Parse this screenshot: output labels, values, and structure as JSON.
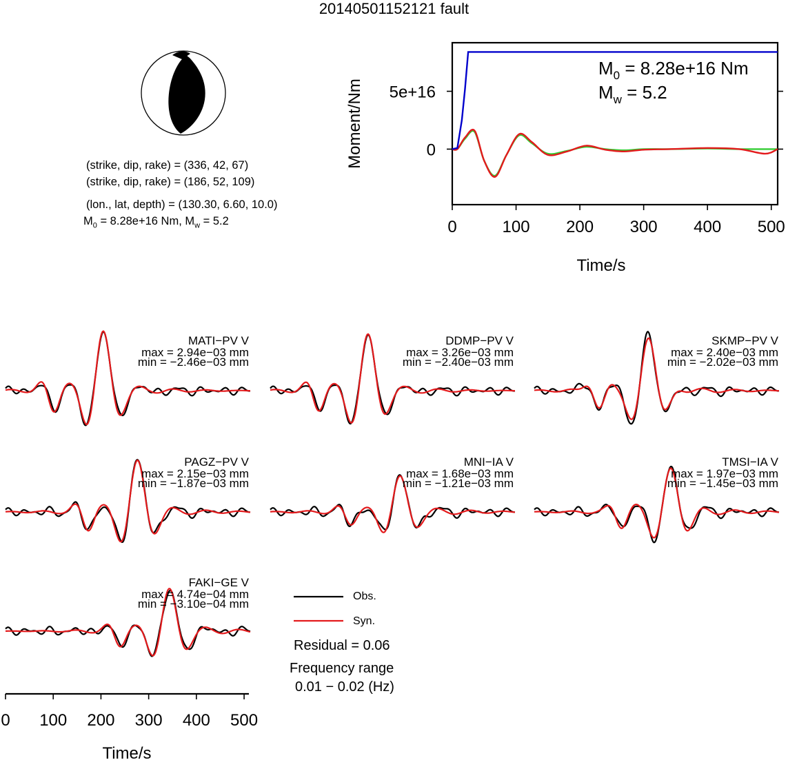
{
  "title": "20140501152121 fault",
  "mechanism": {
    "plane1": "(strike, dip, rake) = (336, 42, 67)",
    "plane2": "(strike, dip, rake) = (186, 52, 109)",
    "location": "(lon., lat, depth) = (130.30, 6.60, 10.0)",
    "m0_text": "M",
    "m0_sub": "0",
    "m0_value": " = 8.28e+16 Nm, M",
    "mw_sub": "w",
    "mw_value": " = 5.2"
  },
  "moment_chart": {
    "annotation_m0": "M",
    "annotation_m0_sub": "0",
    "annotation_m0_value": " = 8.28e+16 Nm",
    "annotation_mw": "M",
    "annotation_mw_sub": "w",
    "annotation_mw_value": " = 5.2"
  },
  "legend": {
    "obs_label": "Obs.",
    "syn_label": "Syn.",
    "obs_color": "#000000",
    "syn_color": "#e31a1c"
  },
  "residual": "Residual = 0.06",
  "frequency_label": "Frequency range",
  "frequency_range": "0.01 − 0.02 (Hz)",
  "chart_data": [
    {
      "type": "line",
      "xlabel": "Time/s",
      "ylabel": "Moment/Nm",
      "xlim": [
        0,
        510
      ],
      "ylim": [
        -4.8e+16,
        9.2e+16
      ],
      "xticks": [
        0,
        100,
        200,
        300,
        400,
        500
      ],
      "yticks": [
        0,
        5e+16
      ],
      "ytick_labels": [
        "0",
        "5e+16"
      ],
      "series": [
        {
          "color": "#0000cc",
          "x": [
            0,
            8,
            15,
            20,
            25,
            510
          ],
          "y": [
            0,
            1000000000000000.0,
            2.5e+16,
            5.2e+16,
            8.4e+16,
            8.4e+16
          ]
        },
        {
          "color": "#e31a1c",
          "x": [
            0,
            8,
            20,
            35,
            50,
            67,
            85,
            105,
            125,
            150,
            180,
            210,
            240,
            270,
            300,
            340,
            400,
            450,
            490,
            510
          ],
          "y": [
            0,
            0,
            1e+16,
            1.6e+16,
            -1e+16,
            -2.4e+16,
            -5000000000000000.0,
            1.3e+16,
            6000000000000000.0,
            -5000000000000000.0,
            -2000000000000000.0,
            3000000000000000.0,
            -500000000000000.0,
            -2000000000000000.0,
            -500000000000000.0,
            0,
            1000000000000000.0,
            0,
            -4000000000000000.0,
            0
          ]
        },
        {
          "color": "#33cc33",
          "x": [
            0,
            8,
            20,
            35,
            50,
            67,
            85,
            105,
            125,
            150,
            180,
            210,
            240,
            270,
            300,
            340,
            400,
            450,
            490,
            510
          ],
          "y": [
            0,
            0,
            9000000000000000.0,
            1.5e+16,
            -1e+16,
            -2.3e+16,
            -5000000000000000.0,
            1.2e+16,
            5000000000000000.0,
            -4000000000000000.0,
            -1500000000000000.0,
            2000000000000000.0,
            0,
            -1000000000000000.0,
            0,
            0,
            500000000000000.0,
            0,
            0,
            0
          ]
        }
      ]
    },
    {
      "type": "line",
      "xlabel": "Time/s",
      "xlim": [
        0,
        510
      ],
      "xticks": [
        0,
        100,
        200,
        300,
        400,
        500
      ],
      "stations": [
        {
          "name": "MATI−PV V",
          "max": "max = 2.94e−03 mm",
          "min": "min = −2.46e−03 mm"
        },
        {
          "name": "DDMP−PV V",
          "max": "max = 3.26e−03 mm",
          "min": "min = −2.40e−03 mm"
        },
        {
          "name": "SKMP−PV V",
          "max": "max = 2.40e−03 mm",
          "min": "min = −2.02e−03 mm"
        },
        {
          "name": "PAGZ−PV V",
          "max": "max = 2.15e−03 mm",
          "min": "min = −1.87e−03 mm"
        },
        {
          "name": "MNI−IA V",
          "max": "max = 1.68e−03 mm",
          "min": "min = −1.21e−03 mm"
        },
        {
          "name": "TMSI−IA V",
          "max": "max = 1.97e−03 mm",
          "min": "min = −1.45e−03 mm"
        },
        {
          "name": "FAKI−GE V",
          "max": "max = 4.74e−04 mm",
          "min": "min = −3.10e−04 mm"
        }
      ]
    }
  ]
}
